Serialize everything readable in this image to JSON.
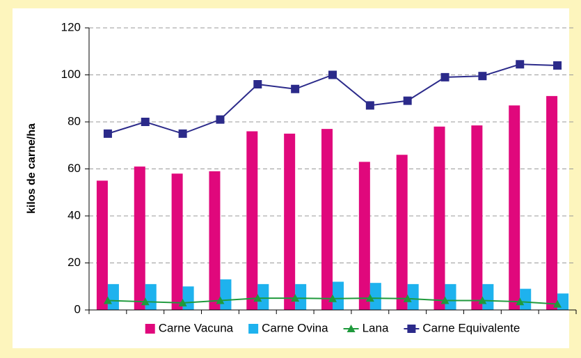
{
  "chart_data": {
    "type": "bar",
    "ylabel": "kilos de carne/ha",
    "categories": [
      null,
      null,
      null,
      null,
      null,
      null,
      null,
      null,
      null,
      null,
      null,
      null,
      null
    ],
    "series": [
      {
        "name": "Carne Vacuna",
        "type": "bar",
        "color": "#e0087c",
        "values": [
          55,
          61,
          58,
          59,
          76,
          75,
          77,
          63,
          66,
          78,
          78.5,
          87,
          91
        ]
      },
      {
        "name": "Carne Ovina",
        "type": "bar",
        "color": "#1eb2ee",
        "values": [
          11,
          11,
          10,
          13,
          11,
          11,
          12,
          11.5,
          11,
          11,
          11,
          9,
          7
        ]
      },
      {
        "name": "Lana",
        "type": "line",
        "marker": "triangle",
        "color": "#1f9a3c",
        "values": [
          4,
          3.5,
          3,
          4,
          5,
          5,
          4.8,
          5,
          4.8,
          4,
          4,
          3.5,
          2.5
        ]
      },
      {
        "name": "Carne Equivalente",
        "type": "line",
        "marker": "square",
        "color": "#2b2a8a",
        "values": [
          75,
          80,
          75,
          81,
          96,
          94,
          100,
          87,
          89,
          99,
          99.5,
          104.5,
          104
        ]
      }
    ],
    "ylim": [
      0,
      120
    ],
    "yticks": [
      0,
      20,
      40,
      60,
      80,
      100,
      120
    ],
    "grid": true,
    "legend": "bottom"
  }
}
